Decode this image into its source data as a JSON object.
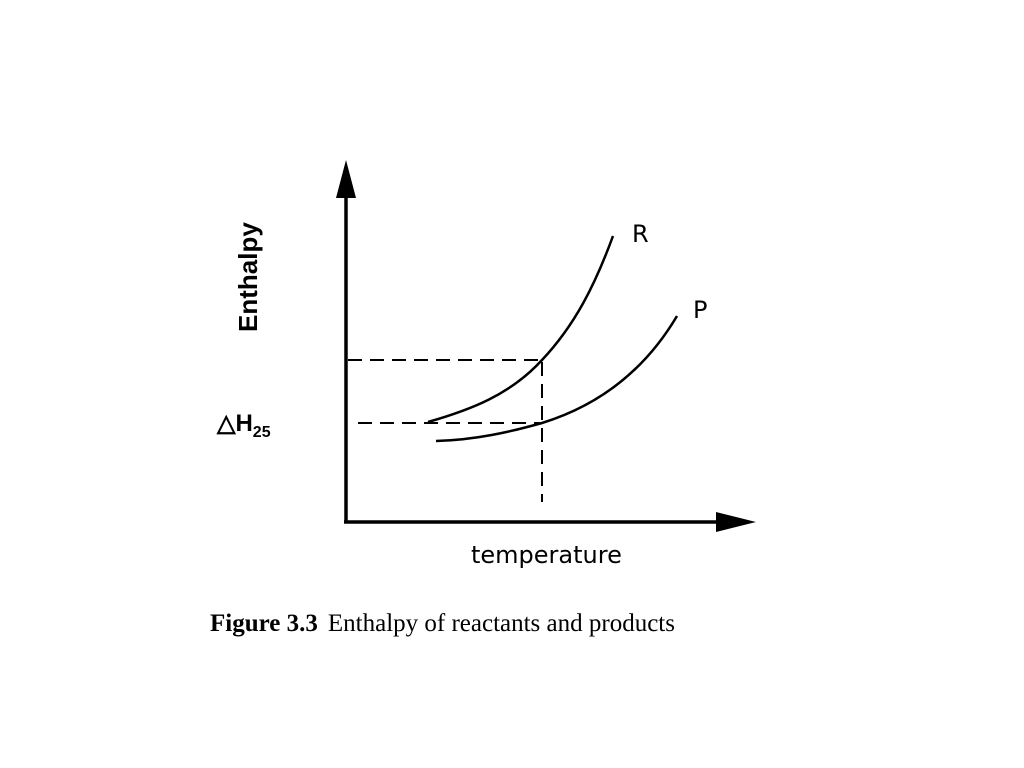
{
  "diagram": {
    "y_axis_label": "Enthalpy",
    "x_axis_label": "temperature",
    "delta_h": {
      "symbol": "△H",
      "subscript": "25"
    },
    "curves": [
      {
        "id": "reactants",
        "label": "R"
      },
      {
        "id": "products",
        "label": "P"
      }
    ],
    "caption": {
      "number": "Figure 3.3",
      "text": "Enthalpy of reactants and products"
    }
  }
}
